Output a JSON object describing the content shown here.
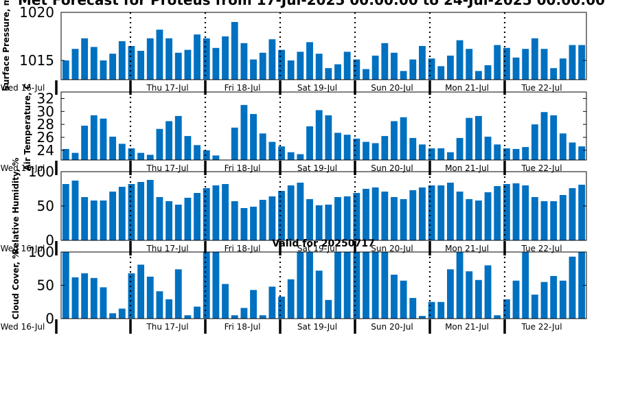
{
  "figure": {
    "title": "Met Forecast for Proteus from 17-Jul-2025 00:00:00 to 24-Jul-2025 00:00:00",
    "subtitle": "Valid for 20250717",
    "bar_color": "#0070c0"
  },
  "chart_data": [
    {
      "type": "bar",
      "ylabel": "Surface Pressure, mb",
      "ylim": [
        1013,
        1020
      ],
      "yticks": [
        1015,
        1020
      ],
      "xtick_labels": [
        "Wed 16-Jul",
        "Thu 17-Jul",
        "Fri 18-Jul",
        "Sat 19-Jul",
        "Sun 20-Jul",
        "Mon 21-Jul",
        "Tue 22-Jul"
      ],
      "values": [
        1015.0,
        1016.2,
        1017.3,
        1016.4,
        1015.0,
        1015.7,
        1017.0,
        1016.5,
        1016.0,
        1017.3,
        1018.2,
        1017.3,
        1015.8,
        1016.1,
        1017.7,
        1017.3,
        1016.3,
        1017.5,
        1019.0,
        1016.8,
        1015.1,
        1015.8,
        1017.2,
        1016.1,
        1015.0,
        1015.9,
        1016.9,
        1015.7,
        1014.2,
        1014.6,
        1015.9,
        1015.1,
        1014.1,
        1015.5,
        1016.8,
        1015.8,
        1013.9,
        1015.1,
        1016.5,
        1015.2,
        1014.4,
        1015.5,
        1017.1,
        1016.2,
        1013.9,
        1014.5,
        1016.6,
        1016.3,
        1015.3,
        1016.2,
        1017.3,
        1016.2,
        1014.2,
        1015.2,
        1016.6,
        1016.6
      ]
    },
    {
      "type": "bar",
      "ylabel": "Air Temperature, C",
      "ylim": [
        22.5,
        33
      ],
      "yticks": [
        24,
        26,
        28,
        30,
        32
      ],
      "xtick_labels": [
        "Wed 16-Jul",
        "Thu 17-Jul",
        "Fri 18-Jul",
        "Sat 19-Jul",
        "Sun 20-Jul",
        "Mon 21-Jul",
        "Tue 22-Jul"
      ],
      "values": [
        24.2,
        23.6,
        27.8,
        29.4,
        28.9,
        26.1,
        25.0,
        24.3,
        23.6,
        23.3,
        27.3,
        28.5,
        29.3,
        26.2,
        24.8,
        24.0,
        23.2,
        22.4,
        27.5,
        31.0,
        29.6,
        26.6,
        25.3,
        24.6,
        23.7,
        23.4,
        27.7,
        30.2,
        29.4,
        26.7,
        26.4,
        25.8,
        25.3,
        25.1,
        26.2,
        28.5,
        29.1,
        25.9,
        24.9,
        24.3,
        24.3,
        23.7,
        25.9,
        29.0,
        29.3,
        26.1,
        24.9,
        24.3,
        24.2,
        24.5,
        28.0,
        29.9,
        29.4,
        26.6,
        25.2,
        24.6
      ]
    },
    {
      "type": "bar",
      "ylabel": "Relative Humidity, %",
      "ylim": [
        0,
        100
      ],
      "yticks": [
        0,
        50,
        100
      ],
      "xtick_labels": [
        "Wed 16-Jul",
        "Thu 17-Jul",
        "Fri 18-Jul",
        "Sat 19-Jul",
        "Sun 20-Jul",
        "Mon 21-Jul",
        "Tue 22-Jul"
      ],
      "values": [
        82,
        87,
        63,
        58,
        58,
        71,
        78,
        82,
        85,
        88,
        63,
        57,
        52,
        62,
        69,
        76,
        80,
        82,
        57,
        47,
        49,
        59,
        64,
        72,
        80,
        84,
        60,
        51,
        52,
        63,
        64,
        69,
        75,
        77,
        71,
        63,
        60,
        73,
        77,
        80,
        80,
        84,
        71,
        60,
        58,
        70,
        79,
        82,
        83,
        80,
        63,
        57,
        57,
        66,
        76,
        81
      ]
    },
    {
      "type": "bar",
      "ylabel": "Cloud Cover, %",
      "ylim": [
        0,
        100
      ],
      "yticks": [
        0,
        50,
        100
      ],
      "xtick_labels": [
        "Wed 16-Jul",
        "Thu 17-Jul",
        "Fri 18-Jul",
        "Sat 19-Jul",
        "Sun 20-Jul",
        "Mon 21-Jul",
        "Tue 22-Jul"
      ],
      "values": [
        100,
        62,
        68,
        61,
        47,
        8,
        15,
        68,
        81,
        63,
        41,
        29,
        74,
        5,
        18,
        100,
        100,
        52,
        5,
        16,
        43,
        5,
        48,
        33,
        59,
        100,
        100,
        72,
        28,
        100,
        100,
        100,
        100,
        100,
        100,
        66,
        57,
        31,
        4,
        25,
        25,
        74,
        100,
        71,
        58,
        80,
        5,
        29,
        57,
        100,
        36,
        55,
        64,
        57,
        93,
        100
      ]
    }
  ]
}
